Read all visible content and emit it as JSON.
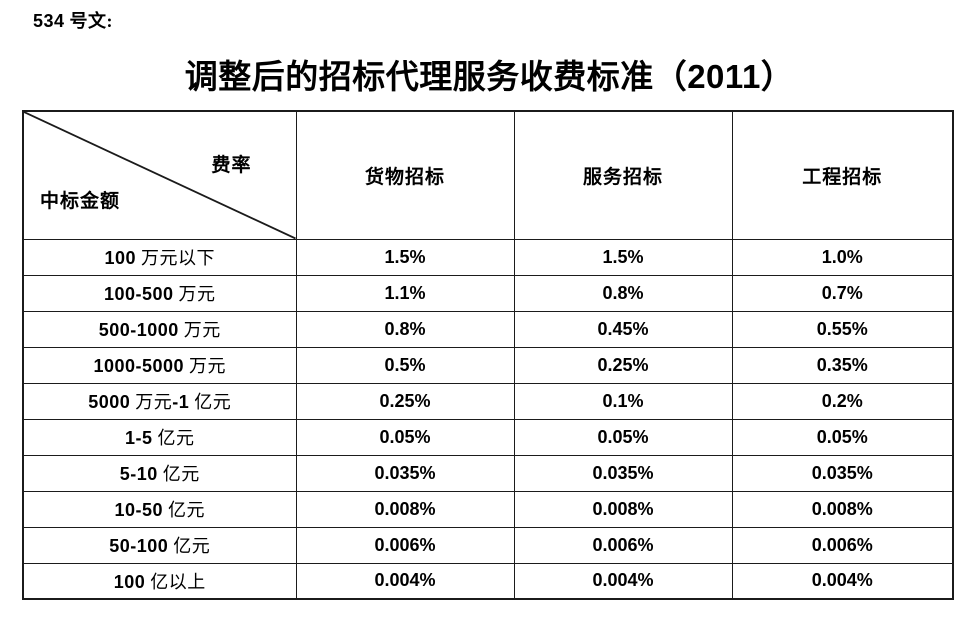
{
  "doc_label": "534 号文:",
  "title": "调整后的招标代理服务收费标准（2011）",
  "colors": {
    "text": "#000000",
    "border": "#1b1b1b",
    "background": "#ffffff"
  },
  "table": {
    "corner": {
      "top_right": "费率",
      "bottom_left": "中标金额"
    },
    "columns": [
      "货物招标",
      "服务招标",
      "工程招标"
    ],
    "rows": [
      {
        "label": "100 万元以下",
        "values": [
          "1.5%",
          "1.5%",
          "1.0%"
        ]
      },
      {
        "label": "100-500 万元",
        "values": [
          "1.1%",
          "0.8%",
          "0.7%"
        ]
      },
      {
        "label": "500-1000 万元",
        "values": [
          "0.8%",
          "0.45%",
          "0.55%"
        ]
      },
      {
        "label": "1000-5000 万元",
        "values": [
          "0.5%",
          "0.25%",
          "0.35%"
        ]
      },
      {
        "label": "5000 万元-1 亿元",
        "values": [
          "0.25%",
          "0.1%",
          "0.2%"
        ]
      },
      {
        "label": "1-5 亿元",
        "values": [
          "0.05%",
          "0.05%",
          "0.05%"
        ]
      },
      {
        "label": "5-10 亿元",
        "values": [
          "0.035%",
          "0.035%",
          "0.035%"
        ]
      },
      {
        "label": "10-50 亿元",
        "values": [
          "0.008%",
          "0.008%",
          "0.008%"
        ]
      },
      {
        "label": "50-100 亿元",
        "values": [
          "0.006%",
          "0.006%",
          "0.006%"
        ]
      },
      {
        "label": "100 亿以上",
        "values": [
          "0.004%",
          "0.004%",
          "0.004%"
        ]
      }
    ]
  }
}
